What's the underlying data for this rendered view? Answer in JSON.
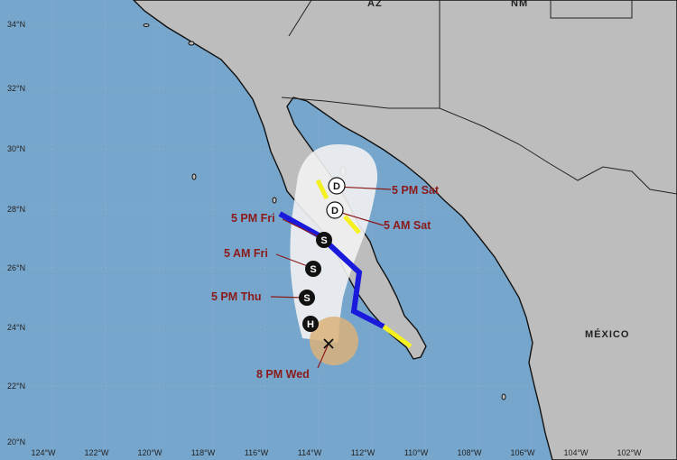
{
  "map": {
    "colors": {
      "ocean": "#77a6cc",
      "land": "#bdbdbd",
      "cone": "#f2f2f2",
      "warning": "#1a1adc",
      "watch": "#f5f020",
      "wind_field": "#d9b27a",
      "label": "#8b1a1a"
    },
    "regions": [
      {
        "id": "az",
        "text": "AZ"
      },
      {
        "id": "nm",
        "text": "NM"
      },
      {
        "id": "mexico",
        "text": "MÉXICO"
      }
    ],
    "lat_ticks": [
      "34°N",
      "32°N",
      "30°N",
      "28°N",
      "26°N",
      "24°N",
      "22°N",
      "20°N"
    ],
    "lon_ticks": [
      "124°W",
      "122°W",
      "120°W",
      "118°W",
      "116°W",
      "114°W",
      "112°W",
      "110°W",
      "108°W",
      "106°W",
      "104°W",
      "102°W"
    ],
    "current_position": {
      "label": "8 PM Wed",
      "icon": "x-mark-icon"
    },
    "forecast_points": [
      {
        "symbol": "H",
        "label": "",
        "type": "hurricane"
      },
      {
        "symbol": "S",
        "label": "5 PM Thu",
        "type": "tropical-storm"
      },
      {
        "symbol": "S",
        "label": "5 AM Fri",
        "type": "tropical-storm"
      },
      {
        "symbol": "S",
        "label": "5 PM Fri",
        "type": "tropical-storm"
      },
      {
        "symbol": "D",
        "label": "5 AM Sat",
        "type": "depression"
      },
      {
        "symbol": "D",
        "label": "5 PM Sat",
        "type": "depression"
      }
    ]
  }
}
